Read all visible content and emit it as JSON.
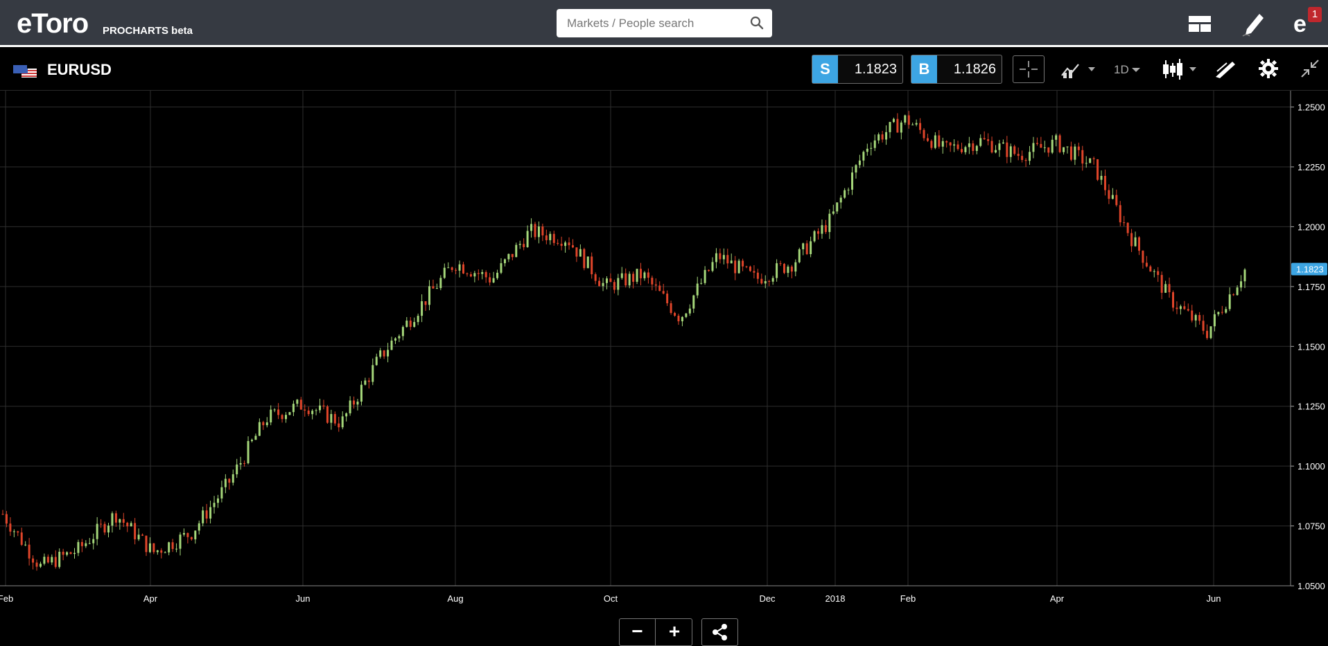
{
  "header": {
    "logo": "eToro",
    "subtitle": "PROCHARTS beta",
    "search_placeholder": "Markets / People search",
    "notification_count": "1"
  },
  "instrument": {
    "symbol": "EURUSD",
    "sell_label": "S",
    "sell_price": "1.1823",
    "buy_label": "B",
    "buy_price": "1.1826",
    "timeframe": "1D"
  },
  "zoom": {
    "minus": "−",
    "plus": "+"
  },
  "colors": {
    "up": "#a5d77a",
    "down": "#e0452a",
    "accent": "#3da5e3",
    "last_price_tag": "#3da5e3"
  },
  "chart_data": {
    "type": "candlestick",
    "ylim": [
      1.05,
      1.255
    ],
    "y_ticks": [
      "1.2500",
      "1.2250",
      "1.2000",
      "1.1750",
      "1.1500",
      "1.1250",
      "1.1000",
      "1.0750",
      "1.0500"
    ],
    "x_ticks": [
      "Feb",
      "Apr",
      "Jun",
      "Aug",
      "Oct",
      "Dec",
      "2018",
      "Feb",
      "Apr",
      "Jun"
    ],
    "last_price": "1.1823",
    "grid": true,
    "series": [
      {
        "x": "Feb",
        "close": 1.08
      },
      {
        "x": "Feb-Mar",
        "close": 1.058
      },
      {
        "x": "Mar",
        "close": 1.065
      },
      {
        "x": "Mar-Apr",
        "close": 1.08
      },
      {
        "x": "Apr",
        "close": 1.064
      },
      {
        "x": "Apr-May",
        "close": 1.072
      },
      {
        "x": "May",
        "close": 1.093
      },
      {
        "x": "May-Jun",
        "close": 1.12
      },
      {
        "x": "Jun",
        "close": 1.126
      },
      {
        "x": "Jun-Jul",
        "close": 1.118
      },
      {
        "x": "Jul",
        "close": 1.145
      },
      {
        "x": "Jul-Aug",
        "close": 1.165
      },
      {
        "x": "Aug",
        "close": 1.185
      },
      {
        "x": "Aug-Sep",
        "close": 1.178
      },
      {
        "x": "Sep",
        "close": 1.198
      },
      {
        "x": "Sep-Oct",
        "close": 1.195
      },
      {
        "x": "Oct",
        "close": 1.175
      },
      {
        "x": "Oct-Nov",
        "close": 1.18
      },
      {
        "x": "Nov",
        "close": 1.162
      },
      {
        "x": "Nov-Dec",
        "close": 1.188
      },
      {
        "x": "Dec",
        "close": 1.178
      },
      {
        "x": "Dec-2018",
        "close": 1.185
      },
      {
        "x": "2018",
        "close": 1.203
      },
      {
        "x": "Jan",
        "close": 1.235
      },
      {
        "x": "Feb",
        "close": 1.245
      },
      {
        "x": "Feb-Mar",
        "close": 1.232
      },
      {
        "x": "Mar",
        "close": 1.236
      },
      {
        "x": "Mar-Apr",
        "close": 1.23
      },
      {
        "x": "Apr",
        "close": 1.235
      },
      {
        "x": "Apr-May",
        "close": 1.225
      },
      {
        "x": "May",
        "close": 1.195
      },
      {
        "x": "May-Jun",
        "close": 1.17
      },
      {
        "x": "Jun",
        "close": 1.156
      },
      {
        "x": "Jun-end",
        "close": 1.182
      }
    ]
  }
}
